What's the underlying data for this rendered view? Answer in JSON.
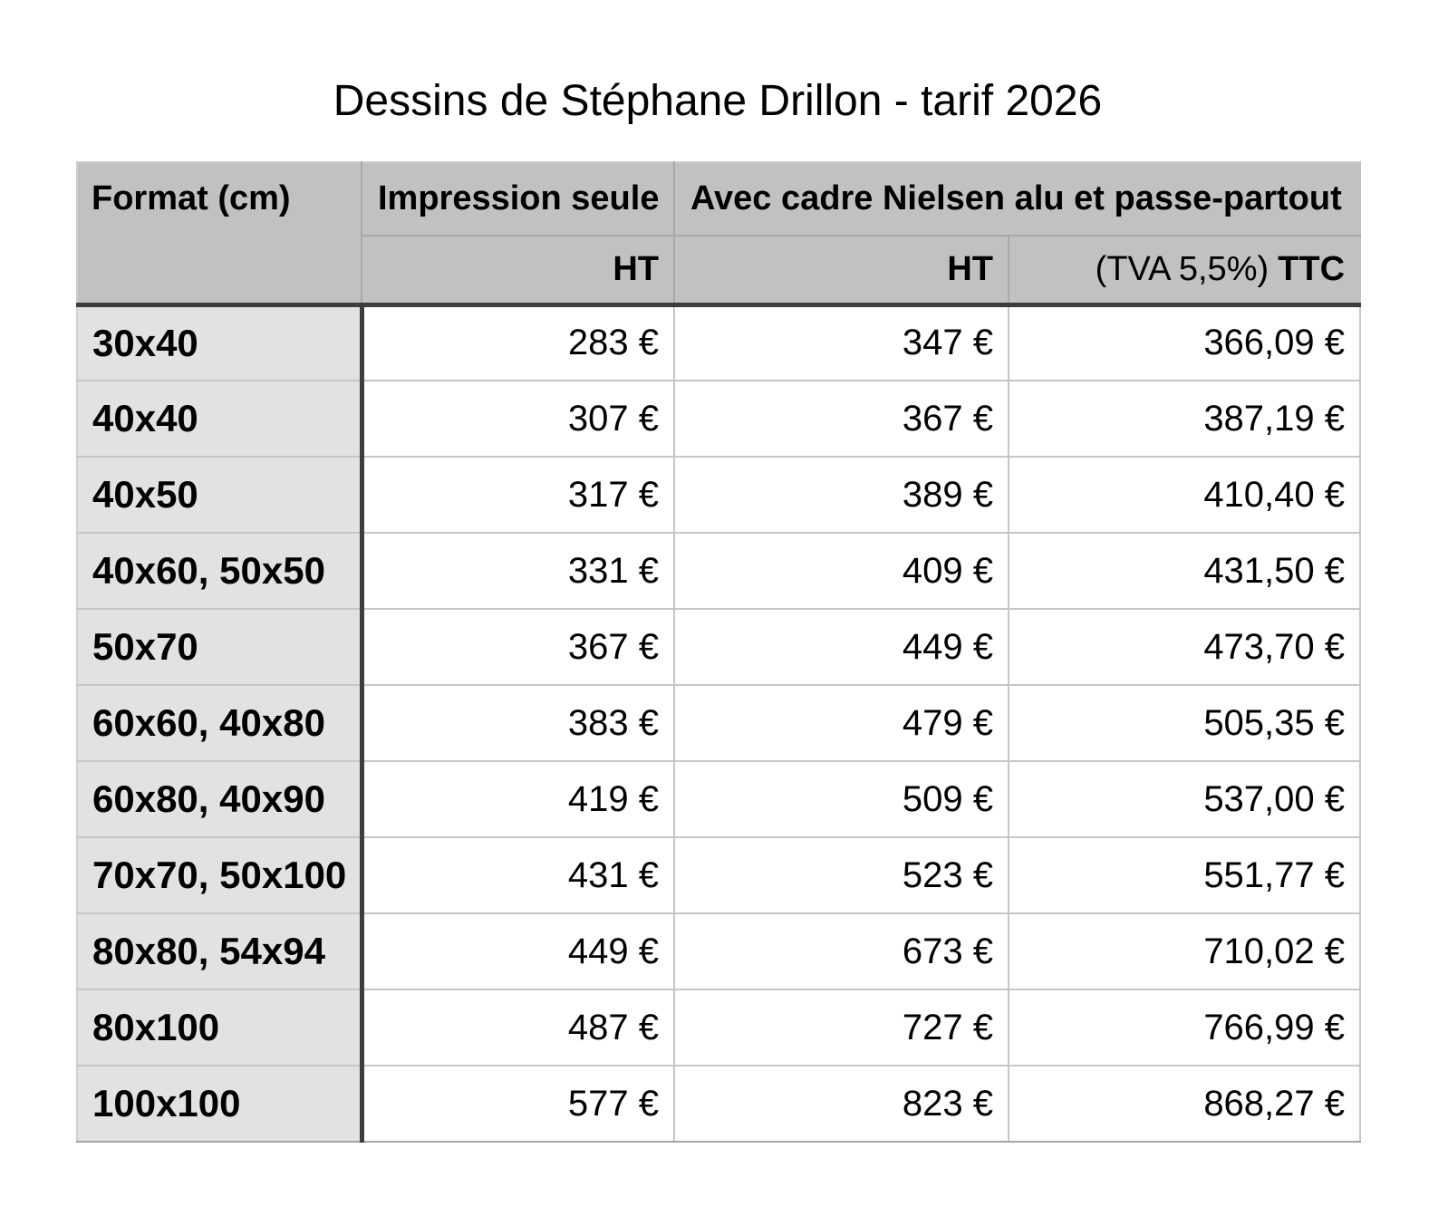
{
  "title": "Dessins de Stéphane Drillon - tarif 2026",
  "table": {
    "header": {
      "format": "Format (cm)",
      "impression": "Impression seule",
      "cadre": "Avec cadre Nielsen alu et passe-partout",
      "impression_ht": "HT",
      "cadre_ht": "HT",
      "tva": "(TVA 5,5%)",
      "ttc": "TTC"
    },
    "rows": [
      {
        "format": "30x40",
        "impression_ht": "283 €",
        "cadre_ht": "347 €",
        "cadre_ttc": "366,09 €"
      },
      {
        "format": "40x40",
        "impression_ht": "307 €",
        "cadre_ht": "367 €",
        "cadre_ttc": "387,19 €"
      },
      {
        "format": "40x50",
        "impression_ht": "317 €",
        "cadre_ht": "389 €",
        "cadre_ttc": "410,40 €"
      },
      {
        "format": "40x60, 50x50",
        "impression_ht": "331 €",
        "cadre_ht": "409 €",
        "cadre_ttc": "431,50 €"
      },
      {
        "format": "50x70",
        "impression_ht": "367 €",
        "cadre_ht": "449 €",
        "cadre_ttc": "473,70 €"
      },
      {
        "format": "60x60, 40x80",
        "impression_ht": "383 €",
        "cadre_ht": "479 €",
        "cadre_ttc": "505,35 €"
      },
      {
        "format": "60x80, 40x90",
        "impression_ht": "419 €",
        "cadre_ht": "509 €",
        "cadre_ttc": "537,00 €"
      },
      {
        "format": "70x70, 50x100",
        "impression_ht": "431 €",
        "cadre_ht": "523 €",
        "cadre_ttc": "551,77 €"
      },
      {
        "format": "80x80, 54x94",
        "impression_ht": "449 €",
        "cadre_ht": "673 €",
        "cadre_ttc": "710,02 €"
      },
      {
        "format": "80x100",
        "impression_ht": "487 €",
        "cadre_ht": "727 €",
        "cadre_ttc": "766,99 €"
      },
      {
        "format": "100x100",
        "impression_ht": "577 €",
        "cadre_ht": "823 €",
        "cadre_ttc": "868,27 €"
      }
    ]
  },
  "colors": {
    "header_bg": "#c1c1c1",
    "format_column_bg": "#e2e2e2",
    "dark_border": "#3d3d3d",
    "grid_line": "#c6c6c6",
    "header_line": "#a9a9a9",
    "text": "#000000",
    "page_bg": "#ffffff"
  }
}
